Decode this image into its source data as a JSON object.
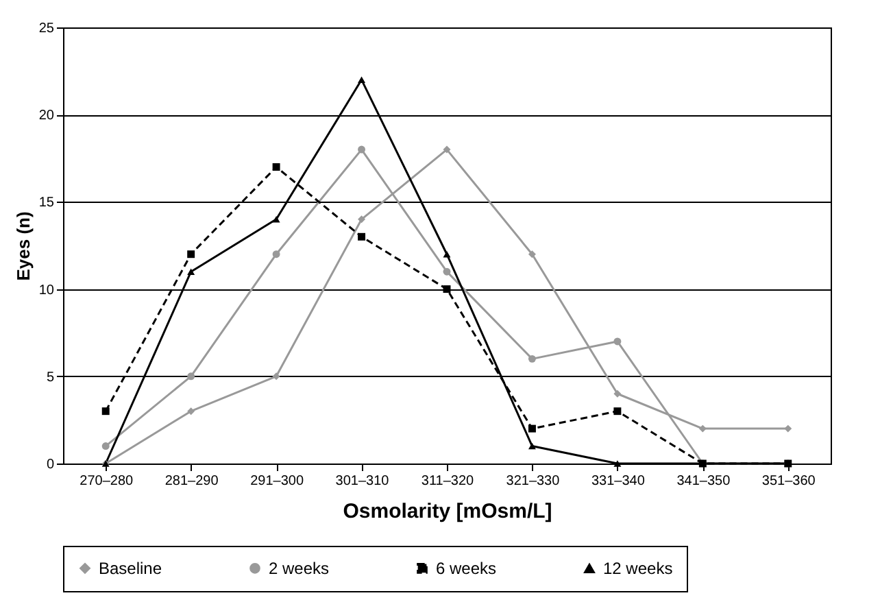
{
  "chart_data": {
    "type": "line",
    "xlabel": "Osmolarity [mOsm/L]",
    "ylabel": "Eyes (n)",
    "categories": [
      "270–280",
      "281–290",
      "291–300",
      "301–310",
      "311–320",
      "321–330",
      "331–340",
      "341–350",
      "351–360"
    ],
    "series": [
      {
        "name": "Baseline",
        "color": "#999999",
        "marker": "diamond",
        "line_style": "solid",
        "values": [
          0,
          3,
          5,
          14,
          18,
          12,
          4,
          2,
          2
        ]
      },
      {
        "name": "2 weeks",
        "color": "#999999",
        "marker": "circle",
        "line_style": "solid",
        "values": [
          1,
          5,
          12,
          18,
          11,
          6,
          7,
          0,
          0
        ]
      },
      {
        "name": "6 weeks",
        "color": "#000000",
        "marker": "square",
        "line_style": "dashed",
        "values": [
          3,
          12,
          17,
          13,
          10,
          2,
          3,
          0,
          0
        ]
      },
      {
        "name": "12 weeks",
        "color": "#000000",
        "marker": "triangle",
        "line_style": "solid",
        "values": [
          0,
          11,
          14,
          22,
          12,
          1,
          0,
          0,
          0
        ]
      }
    ],
    "ylim": [
      0,
      25
    ],
    "yticks": [
      0,
      5,
      10,
      15,
      20,
      25
    ],
    "grid": "y",
    "legend": "bottom"
  }
}
